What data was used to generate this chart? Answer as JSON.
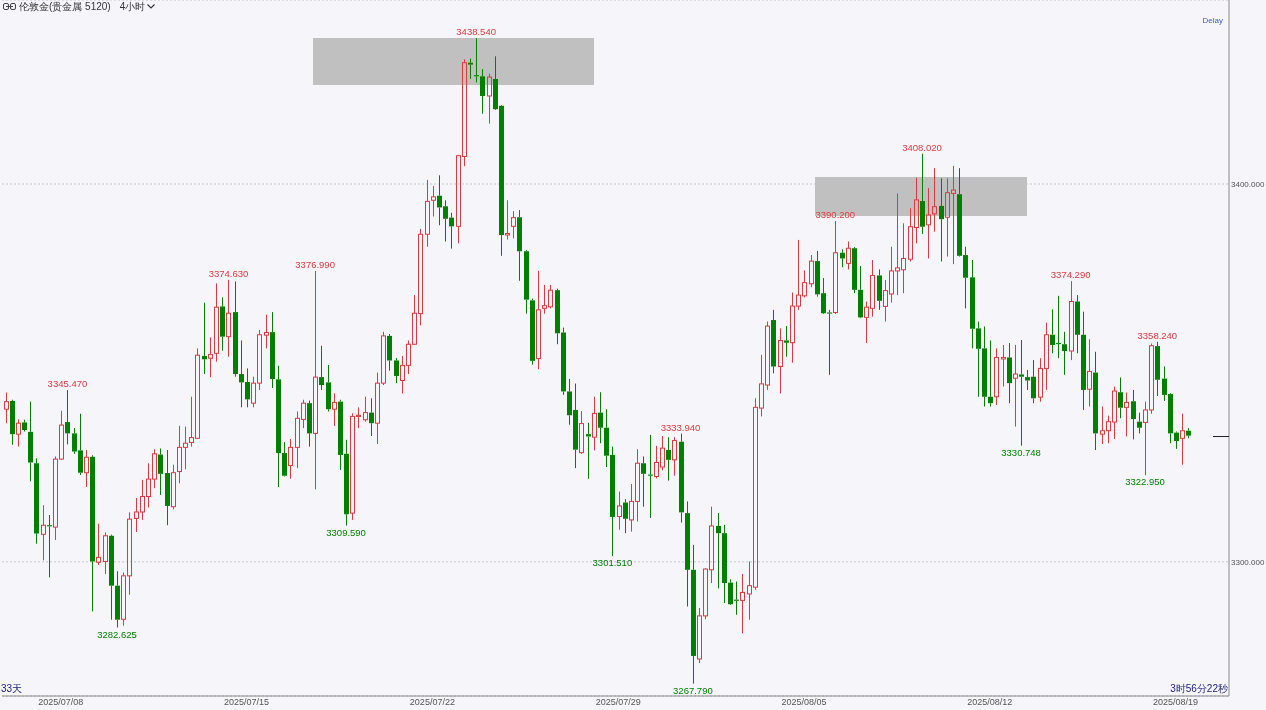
{
  "chart_data": {
    "type": "candlestick",
    "title": "伦敦金(贵金属 5120)",
    "subtitle": "4小时",
    "categories": [
      null,
      null,
      null,
      null,
      null,
      null,
      null,
      null,
      null,
      "2025/07/08",
      null,
      null,
      null,
      null,
      null,
      null,
      null,
      null,
      null,
      null,
      null,
      null,
      null,
      null,
      null,
      null,
      null,
      null,
      null,
      null,
      null,
      null,
      null,
      null,
      null,
      null,
      null,
      null,
      null,
      "2025/07/15",
      null,
      null,
      null,
      null,
      null,
      null,
      null,
      null,
      null,
      null,
      null,
      null,
      null,
      null,
      null,
      null,
      null,
      null,
      null,
      null,
      null,
      null,
      null,
      null,
      null,
      null,
      null,
      null,
      null,
      "2025/07/22",
      null,
      null,
      null,
      null,
      null,
      null,
      null,
      null,
      null,
      null,
      null,
      null,
      null,
      null,
      null,
      null,
      null,
      null,
      null,
      null,
      null,
      null,
      null,
      null,
      null,
      null,
      null,
      null,
      null,
      "2025/07/29",
      null,
      null,
      null,
      null,
      null,
      null,
      null,
      null,
      null,
      null,
      null,
      null,
      null,
      null,
      null,
      null,
      null,
      null,
      null,
      null,
      null,
      null,
      null,
      null,
      null,
      null,
      null,
      null,
      null,
      "2025/08/05",
      null,
      null,
      null,
      null,
      null,
      null,
      null,
      null,
      null,
      null,
      null,
      null,
      null,
      null,
      null,
      null,
      null,
      null,
      null,
      null,
      null,
      null,
      null,
      null,
      null,
      null,
      null,
      null,
      null,
      "2025/08/12",
      null,
      null,
      null,
      null,
      null,
      null,
      null,
      null,
      null,
      null,
      null,
      null,
      null,
      null,
      null,
      null,
      null,
      null,
      null,
      null,
      null,
      null,
      null,
      null,
      null,
      null,
      null,
      null,
      null,
      "2025/08/19",
      null,
      null
    ],
    "ohlc": [
      [
        3340.4,
        3344.8,
        3336.7,
        3342.4
      ],
      [
        3342.6,
        3342.9,
        3331.0,
        3333.8
      ],
      [
        3333.8,
        3337.7,
        3330.5,
        3336.7
      ],
      [
        3336.9,
        3337.6,
        3334.5,
        3334.9
      ],
      [
        3334.4,
        3342.4,
        3321.3,
        3326.3
      ],
      [
        3326.1,
        3327.4,
        3304.8,
        3307.5
      ],
      [
        3307.3,
        3315.0,
        3300.4,
        3309.7
      ],
      [
        3309.7,
        3312.4,
        3295.9,
        3309.4
      ],
      [
        3309.2,
        3327.9,
        3305.8,
        3327.2
      ],
      [
        3327.2,
        3340.0,
        3327.0,
        3336.2
      ],
      [
        3337.0,
        3345.47,
        3331.1,
        3334.0
      ],
      [
        3334.0,
        3335.4,
        3328.6,
        3329.2
      ],
      [
        3329.5,
        3339.2,
        3323.0,
        3323.6
      ],
      [
        3323.6,
        3329.6,
        3319.8,
        3327.7
      ],
      [
        3327.8,
        3328.2,
        3286.9,
        3300.1
      ],
      [
        3299.9,
        3310.1,
        3299.2,
        3301.2
      ],
      [
        3300.1,
        3307.8,
        3296.8,
        3306.9
      ],
      [
        3306.9,
        3307.2,
        3284.7,
        3293.7
      ],
      [
        3293.7,
        3297.5,
        3282.625,
        3284.7
      ],
      [
        3284.8,
        3297.2,
        3283.1,
        3296.3
      ],
      [
        3296.3,
        3313.1,
        3291.3,
        3311.3
      ],
      [
        3311.5,
        3316.9,
        3307.9,
        3313.2
      ],
      [
        3313.2,
        3321.7,
        3311.1,
        3317.3
      ],
      [
        3317.3,
        3326.1,
        3314.4,
        3321.9
      ],
      [
        3321.9,
        3329.8,
        3319.5,
        3328.6
      ],
      [
        3328.4,
        3330.0,
        3317.7,
        3323.3
      ],
      [
        3323.5,
        3329.6,
        3309.7,
        3314.8
      ],
      [
        3314.6,
        3325.7,
        3313.9,
        3323.6
      ],
      [
        3323.9,
        3336.0,
        3320.8,
        3330.3
      ],
      [
        3330.3,
        3335.8,
        3324.5,
        3331.4
      ],
      [
        3331.6,
        3343.7,
        3330.5,
        3332.9
      ],
      [
        3332.7,
        3356.5,
        3332.5,
        3354.7
      ],
      [
        3354.5,
        3368.6,
        3349.7,
        3353.6
      ],
      [
        3353.9,
        3359.4,
        3348.9,
        3354.9
      ],
      [
        3355.2,
        3373.7,
        3353.0,
        3367.4
      ],
      [
        3367.6,
        3370.0,
        3355.9,
        3359.6
      ],
      [
        3359.6,
        3374.63,
        3354.3,
        3365.8
      ],
      [
        3366.1,
        3374.2,
        3349.0,
        3349.7
      ],
      [
        3349.7,
        3358.6,
        3340.9,
        3347.5
      ],
      [
        3347.6,
        3351.2,
        3340.9,
        3343.0
      ],
      [
        3342.0,
        3349.0,
        3340.9,
        3347.3
      ],
      [
        3347.3,
        3361.4,
        3345.5,
        3360.1
      ],
      [
        3360.0,
        3365.4,
        3356.5,
        3360.7
      ],
      [
        3360.8,
        3366.1,
        3346.0,
        3348.4
      ],
      [
        3348.3,
        3351.9,
        3319.8,
        3328.8
      ],
      [
        3328.8,
        3331.7,
        3322.6,
        3322.8
      ],
      [
        3325.5,
        3332.5,
        3322.0,
        3330.3
      ],
      [
        3330.3,
        3339.8,
        3324.8,
        3338.0
      ],
      [
        3337.7,
        3342.9,
        3335.4,
        3342.0
      ],
      [
        3342.0,
        3342.7,
        3330.5,
        3334.0
      ],
      [
        3334.0,
        3376.99,
        3319.2,
        3348.9
      ],
      [
        3348.9,
        3357.2,
        3345.5,
        3346.8
      ],
      [
        3347.5,
        3352.1,
        3339.8,
        3340.4
      ],
      [
        3340.4,
        3344.6,
        3336.0,
        3342.2
      ],
      [
        3342.4,
        3342.9,
        3324.3,
        3328.3
      ],
      [
        3328.6,
        3332.3,
        3309.59,
        3312.6
      ],
      [
        3312.9,
        3339.3,
        3311.1,
        3338.5
      ],
      [
        3338.5,
        3340.9,
        3335.4,
        3338.8
      ],
      [
        3337.6,
        3343.7,
        3337.1,
        3339.5
      ],
      [
        3339.5,
        3343.3,
        3333.3,
        3336.7
      ],
      [
        3336.7,
        3350.1,
        3331.2,
        3347.3
      ],
      [
        3347.3,
        3360.9,
        3346.8,
        3359.8
      ],
      [
        3359.8,
        3360.3,
        3350.6,
        3353.3
      ],
      [
        3353.3,
        3353.9,
        3347.3,
        3349.2
      ],
      [
        3348.0,
        3354.5,
        3344.6,
        3352.0
      ],
      [
        3352.0,
        3358.6,
        3349.7,
        3357.6
      ],
      [
        3357.6,
        3370.6,
        3357.4,
        3365.8
      ],
      [
        3365.7,
        3388.1,
        3362.6,
        3386.7
      ],
      [
        3386.7,
        3401.1,
        3383.4,
        3395.4
      ],
      [
        3395.7,
        3399.5,
        3391.4,
        3396.6
      ],
      [
        3396.9,
        3402.3,
        3389.1,
        3393.8
      ],
      [
        3394.1,
        3395.7,
        3384.8,
        3390.8
      ],
      [
        3391.1,
        3392.4,
        3382.9,
        3388.8
      ],
      [
        3388.8,
        3407.7,
        3384.3,
        3407.5
      ],
      [
        3407.3,
        3433.0,
        3404.7,
        3432.1
      ],
      [
        3432.1,
        3433.2,
        3427.8,
        3431.6
      ],
      [
        3428.8,
        3438.54,
        3426.9,
        3428.5
      ],
      [
        3428.5,
        3430.4,
        3418.6,
        3423.3
      ],
      [
        3423.3,
        3429.2,
        3416.0,
        3428.3
      ],
      [
        3427.8,
        3433.8,
        3419.6,
        3419.8
      ],
      [
        3420.7,
        3420.9,
        3381.0,
        3386.5
      ],
      [
        3386.5,
        3395.7,
        3385.3,
        3386.9
      ],
      [
        3388.8,
        3392.8,
        3385.6,
        3391.1
      ],
      [
        3391.2,
        3393.1,
        3374.4,
        3382.2
      ],
      [
        3382.2,
        3382.5,
        3365.7,
        3369.4
      ],
      [
        3369.2,
        3369.7,
        3352.2,
        3353.2
      ],
      [
        3353.8,
        3377.0,
        3351.0,
        3366.7
      ],
      [
        3367.1,
        3373.3,
        3365.7,
        3367.8
      ],
      [
        3367.5,
        3373.3,
        3367.1,
        3371.9
      ],
      [
        3371.9,
        3372.3,
        3357.6,
        3360.5
      ],
      [
        3360.7,
        3362.0,
        3344.2,
        3345.1
      ],
      [
        3345.1,
        3348.4,
        3336.3,
        3338.8
      ],
      [
        3340.2,
        3347.2,
        3324.8,
        3329.7
      ],
      [
        3328.9,
        3339.9,
        3328.6,
        3336.6
      ],
      [
        3333.8,
        3336.8,
        3322.0,
        3333.2
      ],
      [
        3333.0,
        3343.7,
        3329.5,
        3339.3
      ],
      [
        3339.5,
        3344.9,
        3331.4,
        3335.5
      ],
      [
        3335.5,
        3340.4,
        3325.1,
        3328.1
      ],
      [
        3328.3,
        3330.5,
        3301.51,
        3311.9
      ],
      [
        3312.0,
        3318.6,
        3308.5,
        3314.8
      ],
      [
        3315.7,
        3316.6,
        3307.6,
        3311.4
      ],
      [
        3311.1,
        3320.6,
        3308.0,
        3316.0
      ],
      [
        3316.0,
        3329.8,
        3310.7,
        3326.1
      ],
      [
        3326.1,
        3327.9,
        3314.6,
        3323.3
      ],
      [
        3323.1,
        3333.6,
        3311.6,
        3322.8
      ],
      [
        3322.6,
        3330.7,
        3322.1,
        3326.3
      ],
      [
        3325.1,
        3333.3,
        3324.2,
        3330.1
      ],
      [
        3329.6,
        3333.0,
        3321.5,
        3327.0
      ],
      [
        3327.0,
        3333.0,
        3322.8,
        3332.1
      ],
      [
        3331.8,
        3333.94,
        3310.4,
        3313.1
      ],
      [
        3312.9,
        3316.0,
        3288.2,
        3297.9
      ],
      [
        3297.9,
        3304.5,
        3267.79,
        3275.1
      ],
      [
        3274.3,
        3287.8,
        3273.2,
        3285.7
      ],
      [
        3285.7,
        3298.3,
        3284.8,
        3298.1
      ],
      [
        3297.9,
        3314.6,
        3294.4,
        3309.5
      ],
      [
        3309.5,
        3312.9,
        3293.0,
        3307.6
      ],
      [
        3307.6,
        3309.8,
        3289.1,
        3294.4
      ],
      [
        3294.5,
        3295.4,
        3288.6,
        3288.8
      ],
      [
        3290.0,
        3294.8,
        3286.0,
        3289.7
      ],
      [
        3289.8,
        3296.8,
        3281.1,
        3291.9
      ],
      [
        3291.5,
        3300.1,
        3284.7,
        3293.7
      ],
      [
        3293.3,
        3343.3,
        3292.6,
        3340.9
      ],
      [
        3340.7,
        3354.8,
        3338.5,
        3347.1
      ],
      [
        3346.8,
        3363.6,
        3345.5,
        3362.4
      ],
      [
        3364.0,
        3366.7,
        3349.9,
        3351.7
      ],
      [
        3351.7,
        3361.8,
        3344.6,
        3358.6
      ],
      [
        3358.6,
        3362.4,
        3354.3,
        3358.0
      ],
      [
        3358.0,
        3371.3,
        3352.7,
        3367.7
      ],
      [
        3367.7,
        3385.2,
        3366.7,
        3370.6
      ],
      [
        3370.4,
        3377.1,
        3370.0,
        3373.9
      ],
      [
        3373.6,
        3381.2,
        3372.7,
        3379.6
      ],
      [
        3379.6,
        3382.3,
        3370.2,
        3370.8
      ],
      [
        3371.1,
        3375.1,
        3365.6,
        3365.8
      ],
      [
        3366.0,
        3366.7,
        3349.5,
        3365.7
      ],
      [
        3366.0,
        3390.2,
        3365.6,
        3381.8
      ],
      [
        3381.8,
        3382.7,
        3378.0,
        3380.3
      ],
      [
        3379.0,
        3384.8,
        3377.4,
        3383.0
      ],
      [
        3383.0,
        3383.3,
        3371.1,
        3372.0
      ],
      [
        3372.0,
        3378.3,
        3364.5,
        3364.7
      ],
      [
        3364.7,
        3368.9,
        3357.9,
        3367.4
      ],
      [
        3367.1,
        3379.9,
        3364.9,
        3375.8
      ],
      [
        3375.8,
        3377.4,
        3366.7,
        3369.1
      ],
      [
        3367.6,
        3374.6,
        3363.6,
        3371.8
      ],
      [
        3370.9,
        3383.4,
        3368.6,
        3377.0
      ],
      [
        3377.0,
        3397.5,
        3370.6,
        3377.8
      ],
      [
        3377.3,
        3389.6,
        3371.1,
        3380.3
      ],
      [
        3380.1,
        3393.6,
        3379.5,
        3388.7
      ],
      [
        3388.5,
        3401.7,
        3384.3,
        3395.8
      ],
      [
        3395.5,
        3408.02,
        3386.8,
        3388.7
      ],
      [
        3389.2,
        3398.9,
        3380.3,
        3391.8
      ],
      [
        3392.1,
        3404.2,
        3387.4,
        3394.0
      ],
      [
        3394.2,
        3401.5,
        3379.5,
        3390.7
      ],
      [
        3391.2,
        3401.5,
        3380.8,
        3397.7
      ],
      [
        3397.5,
        3404.8,
        3378.8,
        3398.4
      ],
      [
        3397.3,
        3404.2,
        3380.8,
        3381.0
      ],
      [
        3381.2,
        3383.4,
        3367.1,
        3375.2
      ],
      [
        3375.3,
        3379.9,
        3356.5,
        3361.7
      ],
      [
        3361.8,
        3363.6,
        3343.7,
        3356.4
      ],
      [
        3356.5,
        3362.3,
        3341.1,
        3343.7
      ],
      [
        3343.7,
        3358.6,
        3341.1,
        3342.0
      ],
      [
        3343.7,
        3356.5,
        3341.5,
        3354.1
      ],
      [
        3353.7,
        3357.4,
        3346.4,
        3354.1
      ],
      [
        3354.1,
        3357.9,
        3342.0,
        3347.3
      ],
      [
        3348.6,
        3357.4,
        3335.8,
        3349.7
      ],
      [
        3349.6,
        3358.7,
        3330.748,
        3349.0
      ],
      [
        3348.9,
        3350.8,
        3345.5,
        3348.0
      ],
      [
        3349.0,
        3353.4,
        3342.0,
        3343.3
      ],
      [
        3343.6,
        3353.9,
        3342.4,
        3351.2
      ],
      [
        3351.2,
        3363.3,
        3345.5,
        3360.1
      ],
      [
        3360.1,
        3366.8,
        3355.2,
        3357.4
      ],
      [
        3357.9,
        3370.4,
        3353.9,
        3357.7
      ],
      [
        3357.6,
        3360.9,
        3349.5,
        3355.8
      ],
      [
        3355.8,
        3374.29,
        3353.4,
        3368.9
      ],
      [
        3368.9,
        3370.6,
        3355.2,
        3360.1
      ],
      [
        3360.1,
        3366.2,
        3340.2,
        3345.5
      ],
      [
        3345.7,
        3358.9,
        3341.1,
        3350.4
      ],
      [
        3350.1,
        3355.6,
        3329.6,
        3334.0
      ],
      [
        3333.8,
        3341.1,
        3331.2,
        3334.7
      ],
      [
        3334.7,
        3338.7,
        3331.4,
        3337.1
      ],
      [
        3337.0,
        3346.4,
        3332.5,
        3345.2
      ],
      [
        3344.9,
        3348.8,
        3338.0,
        3340.8
      ],
      [
        3340.9,
        3344.8,
        3333.2,
        3342.2
      ],
      [
        3342.5,
        3345.5,
        3332.4,
        3337.8
      ],
      [
        3337.1,
        3339.5,
        3334.0,
        3335.5
      ],
      [
        3336.9,
        3342.4,
        3322.95,
        3340.2
      ],
      [
        3340.2,
        3357.8,
        3339.2,
        3357.2
      ],
      [
        3357.1,
        3358.24,
        3343.9,
        3348.2
      ],
      [
        3348.5,
        3351.7,
        3342.6,
        3344.2
      ],
      [
        3344.4,
        3344.6,
        3331.4,
        3334.0
      ],
      [
        3334.2,
        3334.5,
        3329.9,
        3332.0
      ],
      [
        3332.7,
        3339.2,
        3325.7,
        3334.7
      ],
      [
        3334.7,
        3335.4,
        3332.7,
        3333.4
      ]
    ],
    "colors": [
      "#e0383e",
      "#008000",
      "#e0383e",
      "#008000",
      "#008000",
      "#008000",
      "#e0383e",
      "#008000",
      "#e0383e",
      "#e0383e",
      "#008000",
      "#008000",
      "#008000",
      "#e0383e",
      "#008000",
      "#e0383e",
      "#e0383e",
      "#008000",
      "#008000",
      "#e0383e",
      "#e0383e",
      "#e0383e",
      "#e0383e",
      "#e0383e",
      "#e0383e",
      "#008000",
      "#008000",
      "#e0383e",
      "#e0383e",
      "#e0383e",
      "#e0383e",
      "#e0383e",
      "#008000",
      "#e0383e",
      "#e0383e",
      "#008000",
      "#e0383e",
      "#008000",
      "#008000",
      "#008000",
      "#e0383e",
      "#e0383e",
      "#e0383e",
      "#008000",
      "#008000",
      "#008000",
      "#e0383e",
      "#e0383e",
      "#e0383e",
      "#008000",
      "#e0383e",
      "#008000",
      "#008000",
      "#e0383e",
      "#008000",
      "#008000",
      "#e0383e",
      "#e0383e",
      "#e0383e",
      "#008000",
      "#e0383e",
      "#e0383e",
      "#008000",
      "#008000",
      "#e0383e",
      "#e0383e",
      "#e0383e",
      "#e0383e",
      "#e0383e",
      "#e0383e",
      "#008000",
      "#008000",
      "#008000",
      "#e0383e",
      "#e0383e",
      "#008000",
      "#008000",
      "#008000",
      "#e0383e",
      "#008000",
      "#008000",
      "#e0383e",
      "#e0383e",
      "#008000",
      "#008000",
      "#008000",
      "#e0383e",
      "#e0383e",
      "#e0383e",
      "#008000",
      "#008000",
      "#008000",
      "#008000",
      "#e0383e",
      "#008000",
      "#e0383e",
      "#008000",
      "#008000",
      "#008000",
      "#e0383e",
      "#008000",
      "#e0383e",
      "#e0383e",
      "#008000",
      "#008000",
      "#e0383e",
      "#e0383e",
      "#008000",
      "#e0383e",
      "#008000",
      "#008000",
      "#008000",
      "#e0383e",
      "#e0383e",
      "#e0383e",
      "#008000",
      "#008000",
      "#008000",
      "#008000",
      "#e0383e",
      "#e0383e",
      "#e0383e",
      "#e0383e",
      "#e0383e",
      "#008000",
      "#e0383e",
      "#008000",
      "#e0383e",
      "#e0383e",
      "#e0383e",
      "#e0383e",
      "#008000",
      "#008000",
      "#008000",
      "#e0383e",
      "#008000",
      "#e0383e",
      "#008000",
      "#008000",
      "#e0383e",
      "#e0383e",
      "#008000",
      "#e0383e",
      "#e0383e",
      "#e0383e",
      "#e0383e",
      "#e0383e",
      "#e0383e",
      "#008000",
      "#e0383e",
      "#e0383e",
      "#008000",
      "#e0383e",
      "#e0383e",
      "#008000",
      "#008000",
      "#008000",
      "#008000",
      "#008000",
      "#008000",
      "#e0383e",
      "#e0383e",
      "#008000",
      "#e0383e",
      "#008000",
      "#008000",
      "#008000",
      "#e0383e",
      "#e0383e",
      "#008000",
      "#008000",
      "#008000",
      "#e0383e",
      "#008000",
      "#008000",
      "#e0383e",
      "#008000",
      "#e0383e",
      "#e0383e",
      "#e0383e",
      "#008000",
      "#e0383e",
      "#008000",
      "#008000",
      "#e0383e",
      "#e0383e",
      "#008000",
      "#008000",
      "#008000",
      "#008000",
      "#e0383e",
      "#008000"
    ],
    "ylim": [
      3264.5,
      3448.7
    ],
    "yticks": [
      {
        "value": 3400,
        "label": "3400.000"
      },
      {
        "value": 3300,
        "label": "3300.000"
      }
    ],
    "grid": "y",
    "annotations": [
      "Delay",
      "33天",
      "3时56分22秒",
      {
        "text": "3345.470",
        "y": 3345.47
      },
      {
        "text": "3374.630",
        "y": 3374.63
      },
      {
        "text": "3376.990",
        "y": 3376.99
      },
      {
        "text": "3438.540",
        "y": 3438.54
      },
      {
        "text": "3333.940",
        "y": 3333.94
      },
      {
        "text": "3390.200",
        "y": 3390.2
      },
      {
        "text": "3408.020",
        "y": 3408.02
      },
      {
        "text": "3374.290",
        "y": 3374.29
      },
      {
        "text": "3358.240",
        "y": 3358.24
      },
      {
        "text": "3282.625",
        "y": 3282.625
      },
      {
        "text": "3309.590",
        "y": 3309.59
      },
      {
        "text": "3301.510",
        "y": 3301.51
      },
      {
        "text": "3267.790",
        "y": 3267.79
      },
      {
        "text": "3330.748",
        "y": 3330.748
      },
      {
        "text": "3322.950",
        "y": 3322.95
      }
    ]
  }
}
